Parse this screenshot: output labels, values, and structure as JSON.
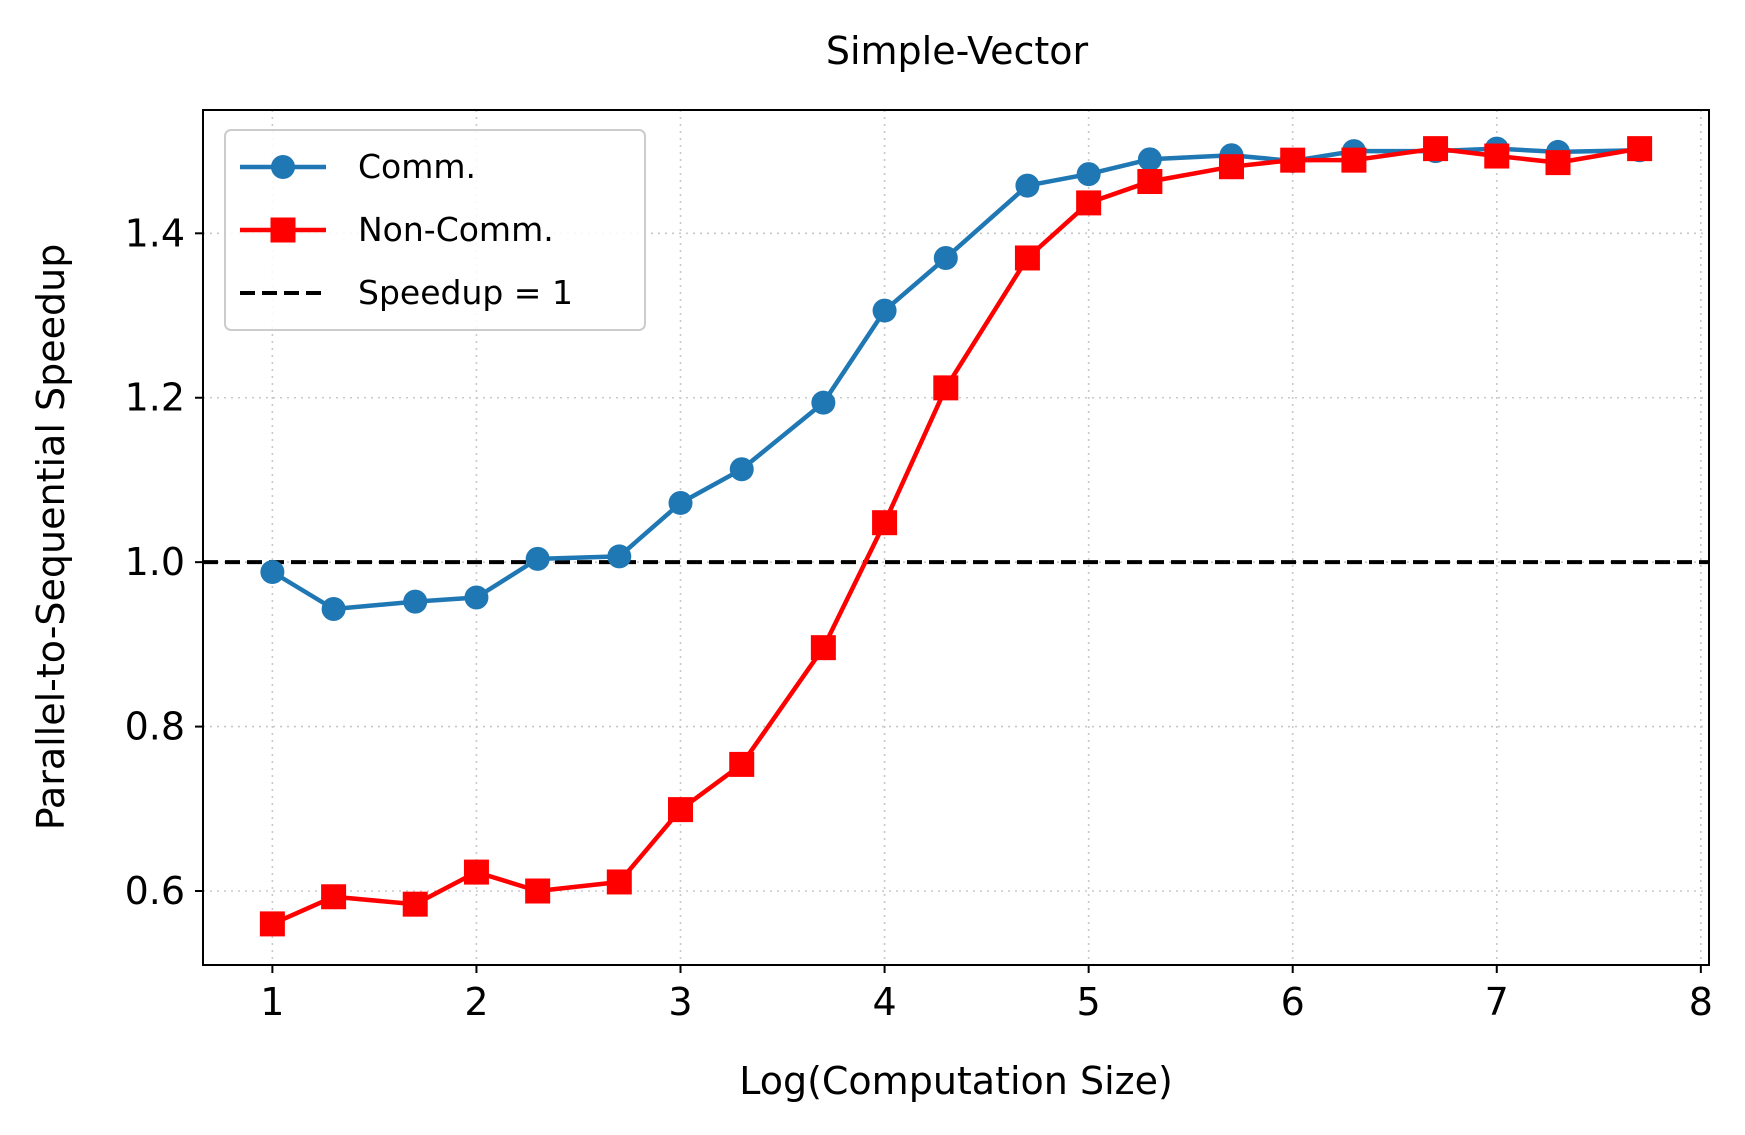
{
  "chart_data": {
    "type": "line",
    "title": "Simple-Vector",
    "xlabel": "Log(Computation Size)",
    "ylabel": "Parallel-to-Sequential Speedup",
    "xlim": [
      0.66,
      8.04
    ],
    "ylim": [
      0.51,
      1.55
    ],
    "xticks": [
      1,
      2,
      3,
      4,
      5,
      6,
      7,
      8
    ],
    "xtick_labels": [
      "1",
      "2",
      "3",
      "4",
      "5",
      "6",
      "7",
      "8"
    ],
    "yticks": [
      0.6,
      0.8,
      1.0,
      1.2,
      1.4
    ],
    "ytick_labels": [
      "0.6",
      "0.8",
      "1.0",
      "1.2",
      "1.4"
    ],
    "grid": true,
    "legend_position": "upper-left",
    "x": [
      1.0,
      1.3,
      1.7,
      2.0,
      2.3,
      2.7,
      3.0,
      3.3,
      3.7,
      4.0,
      4.3,
      4.7,
      5.0,
      5.3,
      5.7,
      6.0,
      6.3,
      6.7,
      7.0,
      7.3,
      7.7
    ],
    "series": [
      {
        "name": "Comm.",
        "color": "#1f77b4",
        "marker": "circle",
        "values": [
          0.988,
          0.943,
          0.952,
          0.957,
          1.004,
          1.007,
          1.072,
          1.113,
          1.194,
          1.306,
          1.37,
          1.458,
          1.472,
          1.49,
          1.495,
          1.488,
          1.5,
          1.5,
          1.503,
          1.499,
          1.501
        ]
      },
      {
        "name": "Non-Comm.",
        "color": "#ff0000",
        "marker": "square",
        "values": [
          0.56,
          0.593,
          0.584,
          0.623,
          0.6,
          0.611,
          0.699,
          0.754,
          0.896,
          1.048,
          1.212,
          1.37,
          1.437,
          1.463,
          1.481,
          1.489,
          1.489,
          1.503,
          1.494,
          1.486,
          1.503
        ]
      }
    ],
    "reference_line": {
      "name": "Speedup = 1",
      "y": 1.0,
      "color": "#000000",
      "style": "dashed"
    }
  }
}
